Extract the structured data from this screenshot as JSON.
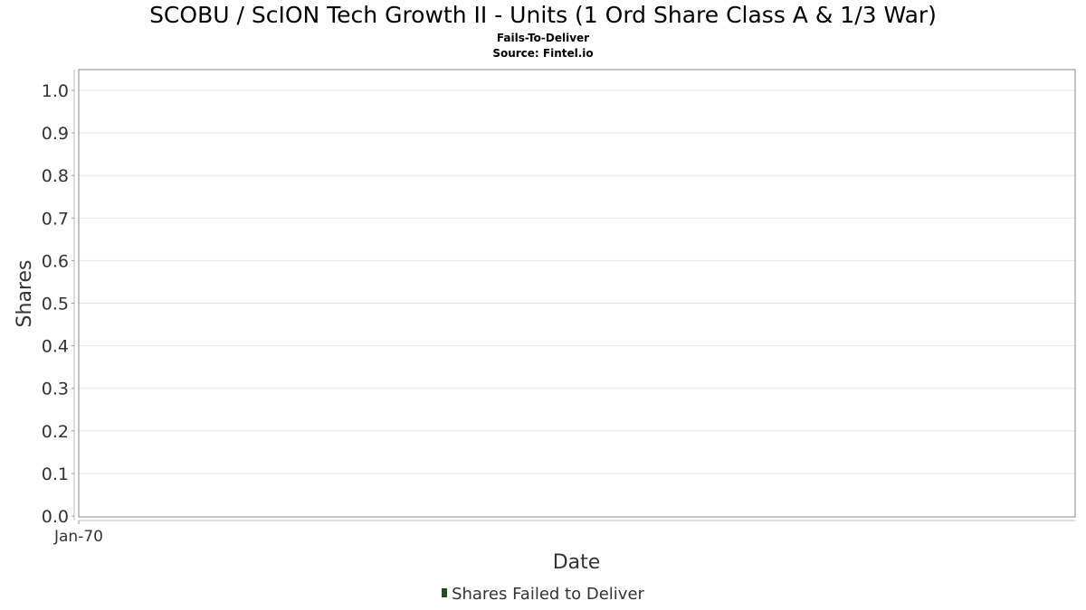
{
  "chart_data": {
    "type": "bar",
    "title": "SCOBU / ScION Tech Growth II - Units (1 Ord Share Class A & 1/3 War)",
    "subtitle": "Fails-To-Deliver",
    "source": "Source: Fintel.io",
    "xlabel": "Date",
    "ylabel": "Shares",
    "ylim": [
      0,
      1.0
    ],
    "yticks": [
      "0.0",
      "0.1",
      "0.2",
      "0.3",
      "0.4",
      "0.5",
      "0.6",
      "0.7",
      "0.8",
      "0.9",
      "1.0"
    ],
    "xticks": [
      "Jan-70"
    ],
    "grid": true,
    "legend_position": "bottom",
    "series": [
      {
        "name": "Shares Failed to Deliver",
        "color": "#1e4d24",
        "values": []
      }
    ]
  }
}
